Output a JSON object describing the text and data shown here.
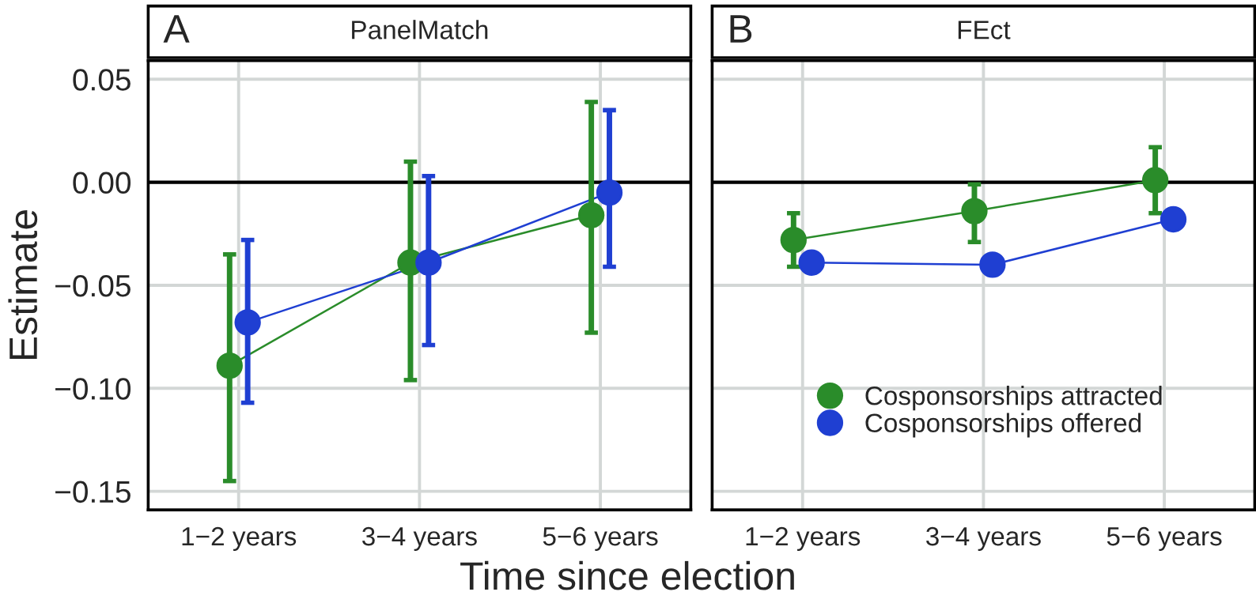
{
  "chart_data": [
    {
      "type": "line",
      "title": "PanelMatch",
      "annotations": [
        "A"
      ],
      "xlabel": "Time since election",
      "ylabel": "Estimate",
      "categories": [
        "1−2 years",
        "3−4 years",
        "5−6 years"
      ],
      "ylim": [
        -0.159,
        0.059
      ],
      "yticks": [
        {
          "value": -0.15,
          "label": "−0.15"
        },
        {
          "value": -0.1,
          "label": "−0.10"
        },
        {
          "value": -0.05,
          "label": "−0.05"
        },
        {
          "value": 0,
          "label": "0.00"
        },
        {
          "value": 0.05,
          "label": "0.05"
        }
      ],
      "grid": true,
      "marker": "circle",
      "line_style": "solid",
      "ref_lines": [
        {
          "axis": "y",
          "value": 0,
          "color": "#000000"
        }
      ],
      "series": [
        {
          "color": "#2a8c2a",
          "values": [
            -0.089,
            -0.039,
            -0.016
          ],
          "errors": [
            [
              -0.145,
              -0.035
            ],
            [
              -0.096,
              0.01
            ],
            [
              -0.073,
              0.039
            ]
          ]
        },
        {
          "color": "#1f3fd2",
          "values": [
            -0.068,
            -0.039,
            -0.005
          ],
          "errors": [
            [
              -0.107,
              -0.028
            ],
            [
              -0.079,
              0.003
            ],
            [
              -0.041,
              0.035
            ]
          ]
        }
      ]
    },
    {
      "type": "line",
      "title": "FEct",
      "annotations": [
        "B"
      ],
      "categories": [
        "1−2 years",
        "3−4 years",
        "5−6 years"
      ],
      "ylim": [
        -0.159,
        0.059
      ],
      "tick_labels": "x",
      "yticks": [
        {
          "value": -0.15,
          "label": null
        },
        {
          "value": -0.1,
          "label": null
        },
        {
          "value": -0.05,
          "label": null
        },
        {
          "value": 0,
          "label": null
        },
        {
          "value": 0.05,
          "label": null
        }
      ],
      "grid": true,
      "marker": "circle",
      "line_style": "solid",
      "legend": "bottom",
      "ref_lines": [
        {
          "axis": "y",
          "value": 0,
          "color": "#000000"
        }
      ],
      "series": [
        {
          "name": "Cosponsorships attracted",
          "color": "#2a8c2a",
          "values": [
            -0.028,
            -0.014,
            0.001
          ],
          "errors": [
            [
              -0.041,
              -0.015
            ],
            [
              -0.029,
              -0.001
            ],
            [
              -0.015,
              0.017
            ]
          ]
        },
        {
          "name": "Cosponsorships offered",
          "color": "#1f3fd2",
          "values": [
            -0.039,
            -0.04,
            -0.018
          ]
        }
      ]
    }
  ]
}
